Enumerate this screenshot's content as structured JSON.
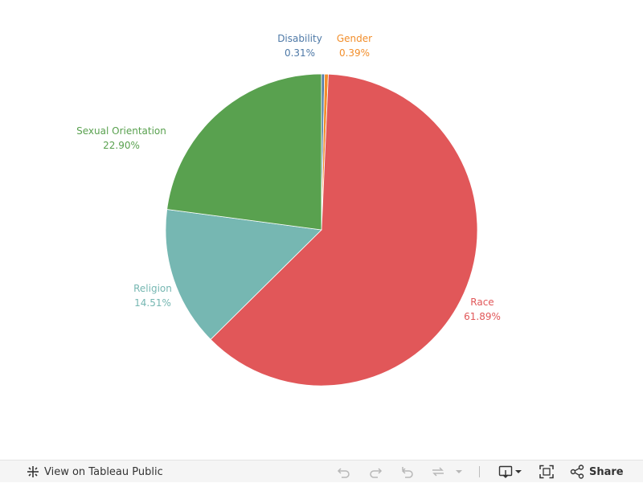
{
  "chart_data": {
    "type": "pie",
    "slices": [
      {
        "label": "Disability",
        "value_label": "0.31%",
        "value": 0.31,
        "color": "#4e79a7"
      },
      {
        "label": "Gender",
        "value_label": "0.39%",
        "value": 0.39,
        "color": "#f28e2b"
      },
      {
        "label": "Race",
        "value_label": "61.89%",
        "value": 61.89,
        "color": "#e15759"
      },
      {
        "label": "Religion",
        "value_label": "14.51%",
        "value": 14.51,
        "color": "#76b7b2"
      },
      {
        "label": "Sexual Orientation",
        "value_label": "22.90%",
        "value": 22.9,
        "color": "#59a14f"
      }
    ],
    "legend": "none",
    "start_direction": "top",
    "slice_order": "clockwise"
  },
  "toolbar": {
    "view_label": "View on Tableau Public",
    "share_label": "Share",
    "icons": {
      "tableau": "tableau-logo-icon",
      "undo": "undo-icon",
      "redo": "redo-icon",
      "revert": "revert-icon",
      "refresh": "refresh-icon",
      "pause_menu": "chevron-down-icon",
      "download": "download-icon",
      "fullscreen": "fullscreen-icon",
      "share": "share-icon"
    }
  }
}
